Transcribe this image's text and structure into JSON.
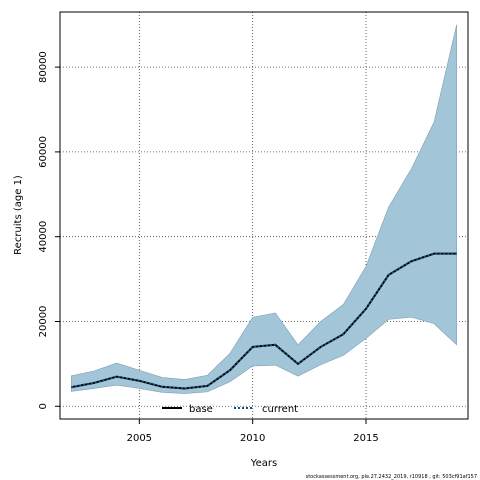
{
  "chart_data": {
    "type": "area",
    "xlabel": "Years",
    "ylabel": "Recruits (age 1)",
    "xlim": [
      2001.5,
      2019.5
    ],
    "ylim": [
      -3000,
      93000
    ],
    "x_ticks": [
      2005,
      2010,
      2015
    ],
    "y_ticks": [
      0,
      20000,
      40000,
      60000,
      80000
    ],
    "x_tick_labels": [
      "2005",
      "2010",
      "2015"
    ],
    "y_tick_labels": [
      "0",
      "20000",
      "40000",
      "60000",
      "80000"
    ],
    "grid": true,
    "legend_position": "bottom",
    "x": [
      2002,
      2003,
      2004,
      2005,
      2006,
      2007,
      2008,
      2009,
      2010,
      2011,
      2012,
      2013,
      2014,
      2015,
      2016,
      2017,
      2018,
      2019
    ],
    "series": [
      {
        "name": "base",
        "style": "solid",
        "values": [
          4500,
          5500,
          7000,
          6000,
          4600,
          4200,
          4800,
          8500,
          14000,
          14500,
          10000,
          14000,
          17000,
          23000,
          31000,
          34200,
          36000,
          36000
        ]
      },
      {
        "name": "current",
        "style": "dotted",
        "values": [
          4500,
          5500,
          7000,
          6000,
          4600,
          4200,
          4800,
          8500,
          14000,
          14500,
          10000,
          14000,
          17000,
          23000,
          31000,
          34200,
          36000,
          36000
        ]
      }
    ],
    "band": {
      "lower": [
        3500,
        4200,
        5000,
        4200,
        3300,
        3000,
        3400,
        5800,
        9500,
        9700,
        7100,
        9800,
        12000,
        16000,
        20500,
        21000,
        19500,
        14500
      ],
      "upper": [
        7200,
        8300,
        10200,
        8500,
        6800,
        6300,
        7300,
        12500,
        21000,
        22000,
        14500,
        20000,
        24000,
        33000,
        47000,
        56000,
        67000,
        90000
      ],
      "color": "#a3c5d8"
    },
    "line_color": "#000000",
    "current_color": "#1f4f7a"
  },
  "footer": "stockassessment.org, ple.27.2432_2019, r10918 , git: 503cf91af157"
}
